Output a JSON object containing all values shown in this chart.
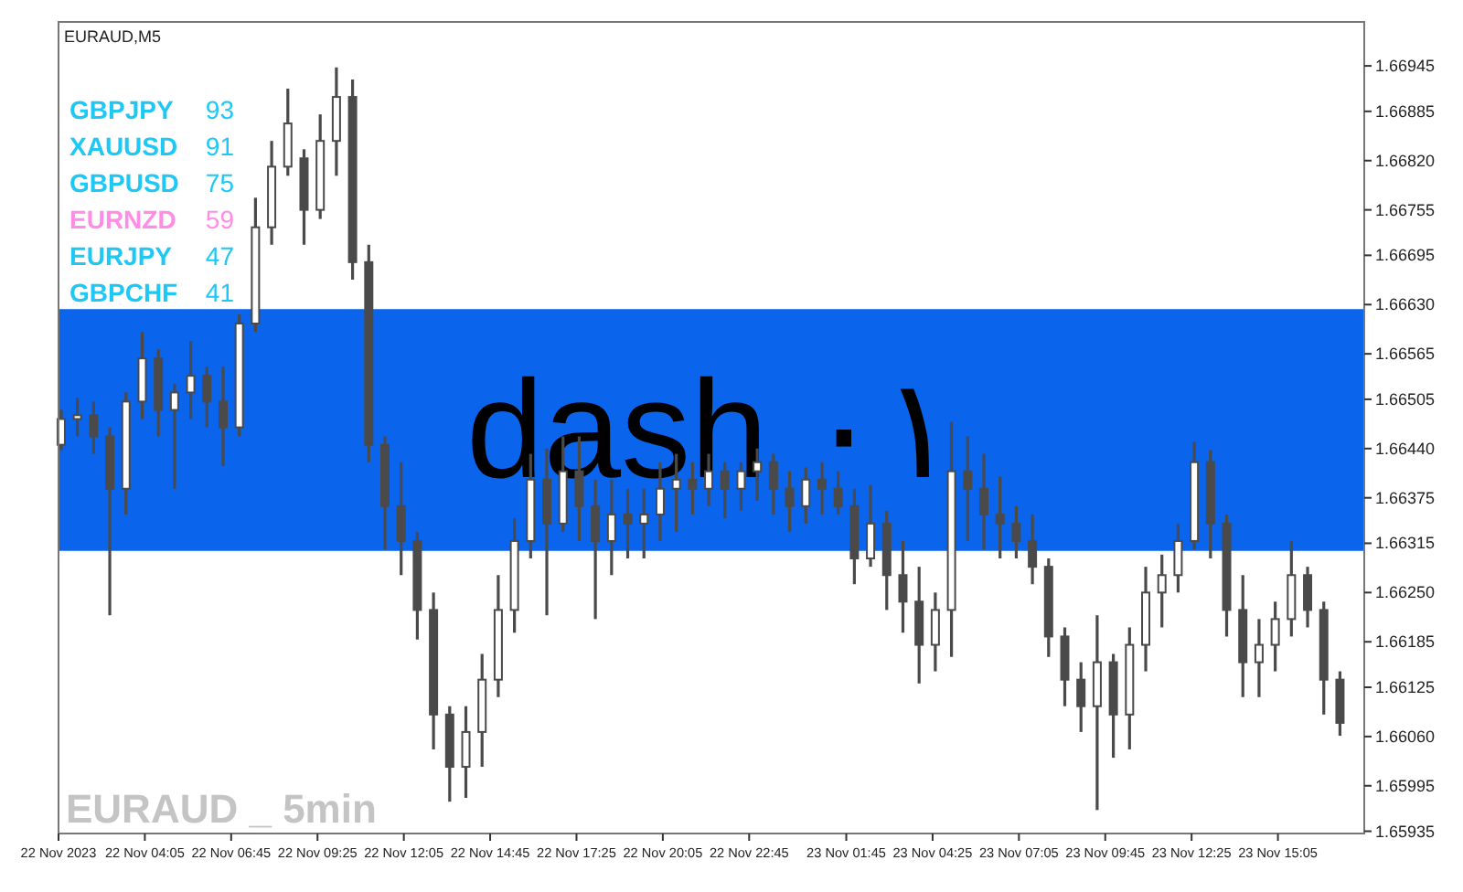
{
  "chart_data": [
    {
      "type": "candlestick",
      "title": "EURAUD,M5",
      "color": "#4a4a4a",
      "annotations": [
        "EURAUD _ 5min"
      ],
      "x": [
        "2023-11-22T01:30",
        "2023-11-22T02:00",
        "2023-11-22T02:30",
        "2023-11-22T03:00",
        "2023-11-22T03:30",
        "2023-11-22T04:00",
        "2023-11-22T04:30",
        "2023-11-22T05:00",
        "2023-11-22T05:30",
        "2023-11-22T06:00",
        "2023-11-22T06:30",
        "2023-11-22T07:00",
        "2023-11-22T07:30",
        "2023-11-22T08:00",
        "2023-11-22T08:30",
        "2023-11-22T09:00",
        "2023-11-22T09:30",
        "2023-11-22T10:00",
        "2023-11-22T10:30",
        "2023-11-22T11:00",
        "2023-11-22T11:30",
        "2023-11-22T12:00",
        "2023-11-22T12:30",
        "2023-11-22T13:00",
        "2023-11-22T13:30",
        "2023-11-22T14:00",
        "2023-11-22T14:30",
        "2023-11-22T15:00",
        "2023-11-22T15:30",
        "2023-11-22T16:00",
        "2023-11-22T16:30",
        "2023-11-22T17:00",
        "2023-11-22T17:30",
        "2023-11-22T18:00",
        "2023-11-22T18:30",
        "2023-11-22T19:00",
        "2023-11-22T19:30",
        "2023-11-22T20:00",
        "2023-11-22T20:30",
        "2023-11-22T21:00",
        "2023-11-22T21:30",
        "2023-11-22T22:00",
        "2023-11-22T22:30",
        "2023-11-22T23:00",
        "2023-11-22T23:30",
        "2023-11-23T00:00",
        "2023-11-23T00:30",
        "2023-11-23T01:00",
        "2023-11-23T01:30",
        "2023-11-23T02:00",
        "2023-11-23T02:30",
        "2023-11-23T03:00",
        "2023-11-23T03:30",
        "2023-11-23T04:00",
        "2023-11-23T04:30",
        "2023-11-23T05:00",
        "2023-11-23T05:30",
        "2023-11-23T06:00",
        "2023-11-23T06:30",
        "2023-11-23T07:00",
        "2023-11-23T07:30",
        "2023-11-23T08:00",
        "2023-11-23T08:30",
        "2023-11-23T09:00",
        "2023-11-23T09:30",
        "2023-11-23T10:00",
        "2023-11-23T10:30",
        "2023-11-23T11:00",
        "2023-11-23T11:30",
        "2023-11-23T12:00",
        "2023-11-23T12:30",
        "2023-11-23T13:00",
        "2023-11-23T13:30",
        "2023-11-23T14:00",
        "2023-11-23T14:30",
        "2023-11-23T15:00",
        "2023-11-23T15:30",
        "2023-11-23T16:00",
        "2023-11-23T16:30",
        "2023-11-23T17:00"
      ],
      "ohlc": [
        [
          1.66445,
          1.66491,
          1.66438,
          1.66479
        ],
        [
          1.66479,
          1.66507,
          1.66456,
          1.66484
        ],
        [
          1.66484,
          1.66502,
          1.66433,
          1.66456
        ],
        [
          1.66456,
          1.66468,
          1.6622,
          1.66387
        ],
        [
          1.66387,
          1.66514,
          1.66353,
          1.66502
        ],
        [
          1.66502,
          1.66594,
          1.66479,
          1.66559
        ],
        [
          1.66559,
          1.66571,
          1.66456,
          1.66491
        ],
        [
          1.66491,
          1.66525,
          1.66387,
          1.66514
        ],
        [
          1.66514,
          1.66582,
          1.66479,
          1.66536
        ],
        [
          1.66536,
          1.66548,
          1.66468,
          1.66502
        ],
        [
          1.66502,
          1.66548,
          1.66417,
          1.66468
        ],
        [
          1.66468,
          1.66617,
          1.66456,
          1.66605
        ],
        [
          1.66605,
          1.66771,
          1.66594,
          1.66732
        ],
        [
          1.66732,
          1.66846,
          1.66709,
          1.66812
        ],
        [
          1.66812,
          1.66915,
          1.668,
          1.66869
        ],
        [
          1.66823,
          1.66835,
          1.66709,
          1.66755
        ],
        [
          1.66755,
          1.66881,
          1.66743,
          1.66846
        ],
        [
          1.66846,
          1.66943,
          1.668,
          1.66904
        ],
        [
          1.66904,
          1.66927,
          1.66663,
          1.66686
        ],
        [
          1.66686,
          1.66709,
          1.66422,
          1.66445
        ],
        [
          1.66445,
          1.66456,
          1.66307,
          1.66364
        ],
        [
          1.66364,
          1.66422,
          1.66273,
          1.66318
        ],
        [
          1.66318,
          1.6633,
          1.66188,
          1.66227
        ],
        [
          1.66227,
          1.6625,
          1.66043,
          1.66089
        ],
        [
          1.66089,
          1.661,
          1.65974,
          1.6602
        ],
        [
          1.6602,
          1.661,
          1.65979,
          1.66066
        ],
        [
          1.66066,
          1.66169,
          1.6602,
          1.66135
        ],
        [
          1.66135,
          1.66273,
          1.66112,
          1.66227
        ],
        [
          1.66227,
          1.66348,
          1.66197,
          1.66318
        ],
        [
          1.66318,
          1.66433,
          1.66295,
          1.66399
        ],
        [
          1.66399,
          1.6644,
          1.6622,
          1.66341
        ],
        [
          1.66341,
          1.66456,
          1.6633,
          1.6641
        ],
        [
          1.6641,
          1.66456,
          1.66318,
          1.66364
        ],
        [
          1.66364,
          1.66399,
          1.66215,
          1.66318
        ],
        [
          1.66318,
          1.66399,
          1.66273,
          1.66353
        ],
        [
          1.66353,
          1.66387,
          1.66295,
          1.66341
        ],
        [
          1.66341,
          1.66387,
          1.66295,
          1.66353
        ],
        [
          1.66353,
          1.66422,
          1.66318,
          1.66387
        ],
        [
          1.66387,
          1.66433,
          1.6633,
          1.66399
        ],
        [
          1.66399,
          1.66422,
          1.66353,
          1.66387
        ],
        [
          1.66387,
          1.66433,
          1.66364,
          1.6641
        ],
        [
          1.6641,
          1.66422,
          1.66348,
          1.66387
        ],
        [
          1.66387,
          1.66422,
          1.66358,
          1.6641
        ],
        [
          1.6641,
          1.6644,
          1.66371,
          1.66422
        ],
        [
          1.66422,
          1.66433,
          1.66353,
          1.66387
        ],
        [
          1.66387,
          1.6641,
          1.6633,
          1.66364
        ],
        [
          1.66364,
          1.66415,
          1.66341,
          1.66399
        ],
        [
          1.66399,
          1.66422,
          1.66353,
          1.66387
        ],
        [
          1.66387,
          1.6641,
          1.66353,
          1.66364
        ],
        [
          1.66364,
          1.66387,
          1.66261,
          1.66295
        ],
        [
          1.66295,
          1.66392,
          1.66284,
          1.66341
        ],
        [
          1.66341,
          1.66358,
          1.66227,
          1.66273
        ],
        [
          1.66273,
          1.66318,
          1.66197,
          1.66238
        ],
        [
          1.66238,
          1.66284,
          1.6613,
          1.66181
        ],
        [
          1.66181,
          1.6625,
          1.66146,
          1.66227
        ],
        [
          1.66227,
          1.66475,
          1.66165,
          1.6641
        ],
        [
          1.6641,
          1.66456,
          1.66318,
          1.66387
        ],
        [
          1.66387,
          1.66433,
          1.66307,
          1.66353
        ],
        [
          1.66353,
          1.66403,
          1.66295,
          1.66341
        ],
        [
          1.66341,
          1.66364,
          1.66295,
          1.66318
        ],
        [
          1.66318,
          1.66353,
          1.66261,
          1.66284
        ],
        [
          1.66284,
          1.66295,
          1.66165,
          1.66192
        ],
        [
          1.66192,
          1.66204,
          1.661,
          1.66135
        ],
        [
          1.66135,
          1.66158,
          1.66066,
          1.661
        ],
        [
          1.661,
          1.6622,
          1.65963,
          1.66158
        ],
        [
          1.66158,
          1.66169,
          1.66032,
          1.66089
        ],
        [
          1.66089,
          1.66204,
          1.66043,
          1.66181
        ],
        [
          1.66181,
          1.66284,
          1.66146,
          1.6625
        ],
        [
          1.6625,
          1.663,
          1.66204,
          1.66273
        ],
        [
          1.66273,
          1.66341,
          1.6625,
          1.66318
        ],
        [
          1.66318,
          1.66449,
          1.66307,
          1.66422
        ],
        [
          1.66422,
          1.66438,
          1.66295,
          1.66341
        ],
        [
          1.66341,
          1.66353,
          1.66192,
          1.66227
        ],
        [
          1.66227,
          1.66273,
          1.66112,
          1.66158
        ],
        [
          1.66158,
          1.66215,
          1.66112,
          1.66181
        ],
        [
          1.66181,
          1.66238,
          1.66146,
          1.66215
        ],
        [
          1.66215,
          1.66318,
          1.66192,
          1.66273
        ],
        [
          1.66273,
          1.66284,
          1.66204,
          1.66227
        ],
        [
          1.66227,
          1.66238,
          1.66089,
          1.66135
        ],
        [
          1.66135,
          1.66146,
          1.66061,
          1.66078
        ]
      ],
      "xlim": [
        "2023-11-22T01:25",
        "2023-11-23T17:45"
      ],
      "xticks": [
        {
          "value": "2023-11-22T01:25",
          "label": "22 Nov 2023"
        },
        {
          "value": "2023-11-22T04:05",
          "label": "22 Nov 04:05"
        },
        {
          "value": "2023-11-22T06:45",
          "label": "22 Nov 06:45"
        },
        {
          "value": "2023-11-22T09:25",
          "label": "22 Nov 09:25"
        },
        {
          "value": "2023-11-22T12:05",
          "label": "22 Nov 12:05"
        },
        {
          "value": "2023-11-22T14:45",
          "label": "22 Nov 14:45"
        },
        {
          "value": "2023-11-22T17:25",
          "label": "22 Nov 17:25"
        },
        {
          "value": "2023-11-22T20:05",
          "label": "22 Nov 20:05"
        },
        {
          "value": "2023-11-22T22:45",
          "label": "22 Nov 22:45"
        },
        {
          "value": "2023-11-23T01:45",
          "label": "23 Nov 01:45"
        },
        {
          "value": "2023-11-23T04:25",
          "label": "23 Nov 04:25"
        },
        {
          "value": "2023-11-23T07:05",
          "label": "23 Nov 07:05"
        },
        {
          "value": "2023-11-23T09:45",
          "label": "23 Nov 09:45"
        },
        {
          "value": "2023-11-23T12:25",
          "label": "23 Nov 12:25"
        },
        {
          "value": "2023-11-23T15:05",
          "label": "23 Nov 15:05"
        }
      ],
      "ylim": [
        1.65932,
        1.67003
      ],
      "yticks": [
        1.65935,
        1.65995,
        {
          "value": 1.6606,
          "label": "1.66060"
        },
        1.66125,
        1.66185,
        {
          "value": 1.6625,
          "label": "1.66250"
        },
        1.66315,
        1.66375,
        {
          "value": 1.6644,
          "label": "1.66440"
        },
        1.66505,
        1.66565,
        {
          "value": 1.6663,
          "label": "1.66630"
        },
        1.66695,
        1.66755,
        {
          "value": 1.6682,
          "label": "1.66820"
        },
        1.66885,
        1.66945
      ],
      "bands": [
        {
          "axis": "y",
          "from": 1.66305,
          "to": 1.66624,
          "label": "dash ۰۱",
          "color": "#0a64ec"
        }
      ]
    },
    {
      "type": "other",
      "data_labels": true,
      "categories": [
        "GBPJPY",
        "XAUUSD",
        "GBPUSD",
        "EURNZD",
        "EURJPY",
        "GBPCHF"
      ],
      "values": [
        93,
        91,
        75,
        59,
        47,
        41
      ],
      "colors": [
        "#1ec8f5",
        "#1ec8f5",
        "#1ec8f5",
        "#ff8ce6",
        "#1ec8f5",
        "#1ec8f5"
      ]
    }
  ]
}
